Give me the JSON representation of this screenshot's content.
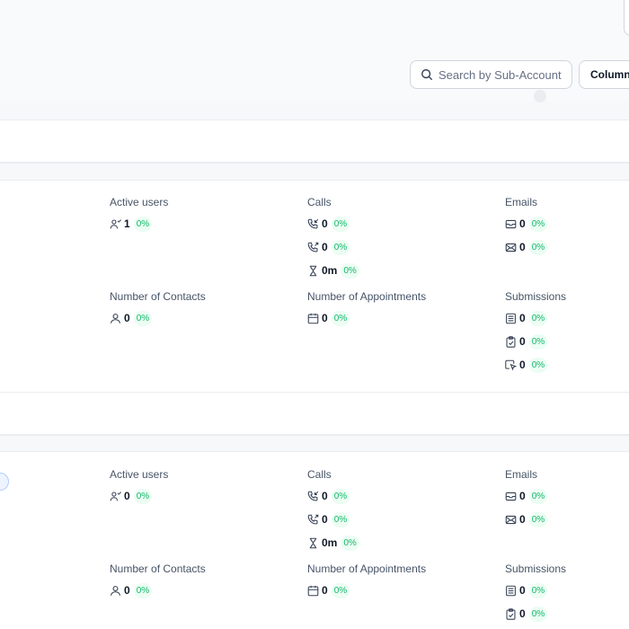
{
  "search": {
    "placeholder": "Search by Sub-Account"
  },
  "toolbar": {
    "columns_label": "Columns"
  },
  "cards": [
    {
      "active_users": {
        "label": "Active users",
        "value": "1",
        "pct": "0%"
      },
      "calls": {
        "label": "Calls",
        "rows": [
          {
            "icon": "phone-incoming-icon",
            "value": "0",
            "pct": "0%"
          },
          {
            "icon": "phone-outgoing-icon",
            "value": "0",
            "pct": "0%"
          },
          {
            "icon": "hourglass-icon",
            "value": "0m",
            "pct": "0%"
          }
        ]
      },
      "emails": {
        "label": "Emails",
        "rows": [
          {
            "icon": "mail-open-icon",
            "value": "0",
            "pct": "0%"
          },
          {
            "icon": "mail-icon",
            "value": "0",
            "pct": "0%"
          }
        ]
      },
      "contacts": {
        "label": "Number of Contacts",
        "value": "0",
        "pct": "0%"
      },
      "appointments": {
        "label": "Number of Appointments",
        "value": "0",
        "pct": "0%"
      },
      "submissions": {
        "label": "Submissions",
        "rows": [
          {
            "icon": "form-icon",
            "value": "0",
            "pct": "0%"
          },
          {
            "icon": "clipboard-check-icon",
            "value": "0",
            "pct": "0%"
          },
          {
            "icon": "cursor-click-icon",
            "value": "0",
            "pct": "0%"
          }
        ]
      }
    },
    {
      "active_users": {
        "label": "Active users",
        "value": "0",
        "pct": "0%"
      },
      "calls": {
        "label": "Calls",
        "rows": [
          {
            "icon": "phone-incoming-icon",
            "value": "0",
            "pct": "0%"
          },
          {
            "icon": "phone-outgoing-icon",
            "value": "0",
            "pct": "0%"
          },
          {
            "icon": "hourglass-icon",
            "value": "0m",
            "pct": "0%"
          }
        ]
      },
      "emails": {
        "label": "Emails",
        "rows": [
          {
            "icon": "mail-open-icon",
            "value": "0",
            "pct": "0%"
          },
          {
            "icon": "mail-icon",
            "value": "0",
            "pct": "0%"
          }
        ]
      },
      "contacts": {
        "label": "Number of Contacts",
        "value": "0",
        "pct": "0%"
      },
      "appointments": {
        "label": "Number of Appointments",
        "value": "0",
        "pct": "0%"
      },
      "submissions": {
        "label": "Submissions",
        "rows": [
          {
            "icon": "form-icon",
            "value": "0",
            "pct": "0%"
          },
          {
            "icon": "clipboard-check-icon",
            "value": "0",
            "pct": "0%"
          }
        ]
      }
    }
  ]
}
